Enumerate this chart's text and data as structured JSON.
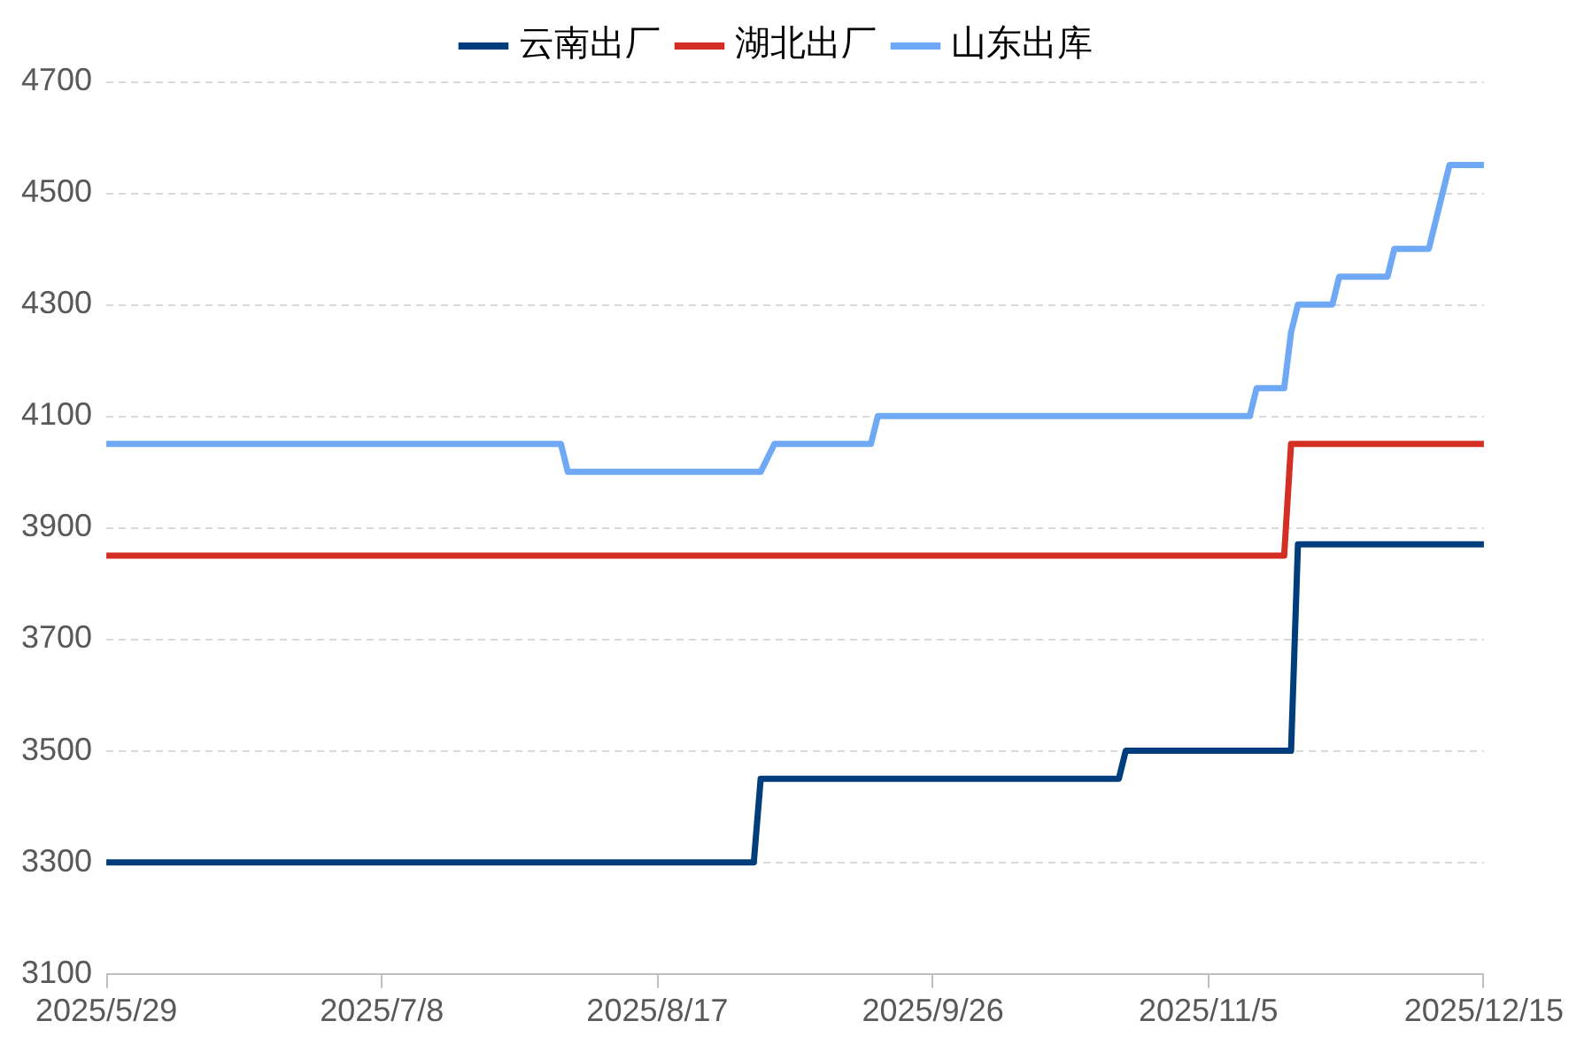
{
  "chart_data": {
    "type": "line",
    "legend": "top",
    "grid": "y",
    "marker": "none",
    "line_style": "solid",
    "xlim": [
      "2025-05-29",
      "2025-12-15"
    ],
    "xticks": [
      {
        "value": "2025-05-29",
        "label": "2025/5/29"
      },
      {
        "value": "2025-07-08",
        "label": "2025/7/8"
      },
      {
        "value": "2025-08-17",
        "label": "2025/8/17"
      },
      {
        "value": "2025-09-26",
        "label": "2025/9/26"
      },
      {
        "value": "2025-11-05",
        "label": "2025/11/5"
      },
      {
        "value": "2025-12-15",
        "label": "2025/12/15"
      }
    ],
    "ylim": [
      3100,
      4700
    ],
    "yticks": [
      3100,
      3300,
      3500,
      3700,
      3900,
      4100,
      4300,
      4500,
      4700
    ],
    "series": [
      {
        "name": "云南出厂",
        "color": "#003d7c",
        "x": [
          "2025-05-29",
          "2025-08-31",
          "2025-09-01",
          "2025-10-23",
          "2025-10-24",
          "2025-11-17",
          "2025-11-18",
          "2025-12-15"
        ],
        "values": [
          3300,
          3300,
          3450,
          3450,
          3500,
          3500,
          3870,
          3870
        ]
      },
      {
        "name": "湖北出厂",
        "color": "#d32f24",
        "x": [
          "2025-05-29",
          "2025-11-16",
          "2025-11-17",
          "2025-12-15"
        ],
        "values": [
          3850,
          3850,
          4050,
          4050
        ]
      },
      {
        "name": "山东出库",
        "color": "#6fa8f5",
        "x": [
          "2025-05-29",
          "2025-08-03",
          "2025-08-04",
          "2025-09-01",
          "2025-09-03",
          "2025-09-17",
          "2025-09-18",
          "2025-11-11",
          "2025-11-12",
          "2025-11-16",
          "2025-11-17",
          "2025-11-18",
          "2025-11-23",
          "2025-11-24",
          "2025-12-01",
          "2025-12-02",
          "2025-12-07",
          "2025-12-10",
          "2025-12-15"
        ],
        "values": [
          4050,
          4050,
          4000,
          4000,
          4050,
          4050,
          4100,
          4100,
          4150,
          4150,
          4250,
          4300,
          4300,
          4350,
          4350,
          4400,
          4400,
          4550,
          4550
        ]
      }
    ]
  }
}
